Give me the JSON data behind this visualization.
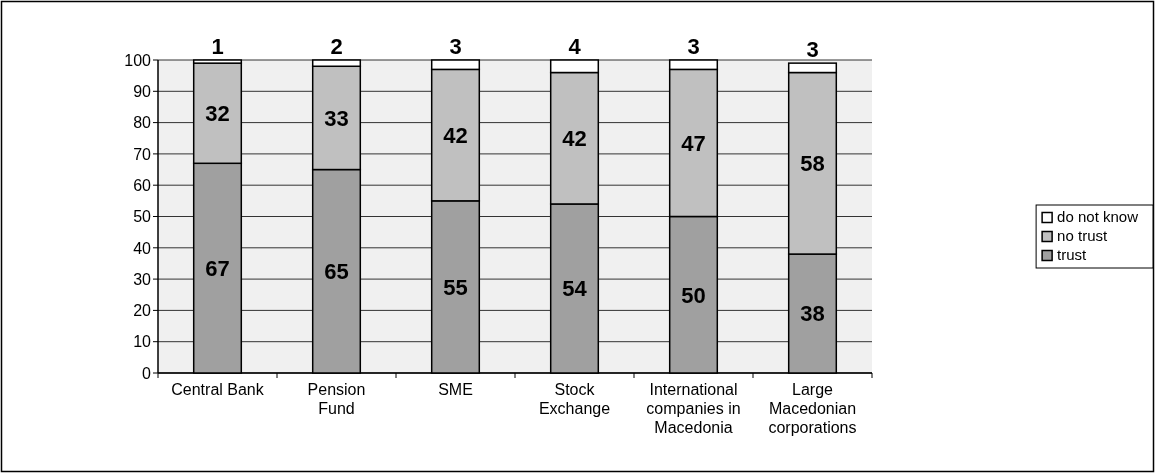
{
  "chart_data": {
    "type": "bar",
    "stacked": true,
    "categories": [
      "Central Bank",
      "Pension Fund",
      "SME",
      "Stock Exchange",
      "International companies in Macedonia",
      "Large Macedonian corporations"
    ],
    "series": [
      {
        "name": "trust",
        "color": "#a0a0a0",
        "values": [
          67,
          65,
          55,
          54,
          50,
          38
        ]
      },
      {
        "name": "no trust",
        "color": "#c0c0c0",
        "values": [
          32,
          33,
          42,
          42,
          47,
          58
        ]
      },
      {
        "name": "do not know",
        "color": "#ffffff",
        "values": [
          1,
          2,
          3,
          4,
          3,
          3
        ]
      }
    ],
    "ylim": [
      0,
      100
    ],
    "yticks": [
      0,
      10,
      20,
      30,
      40,
      50,
      60,
      70,
      80,
      90,
      100
    ],
    "grid": "y",
    "legend": "right",
    "data_labels": true
  }
}
